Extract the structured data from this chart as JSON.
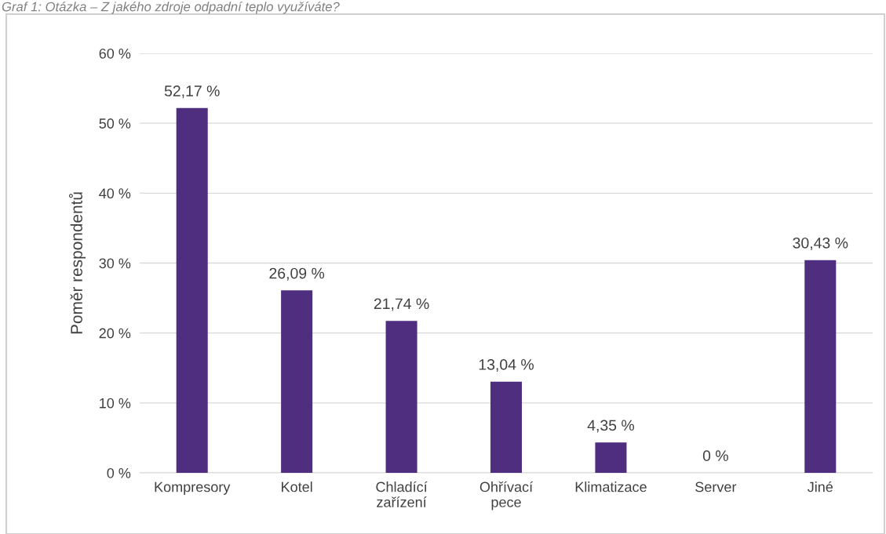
{
  "chart_data": {
    "type": "bar",
    "title": "Graf 1: Otázka – Z jakého zdroje odpadní teplo využíváte?",
    "ylabel": "Poměr respondentů",
    "categories": [
      "Kompresory",
      "Kotel",
      "Chladící\nzařízení",
      "Ohřívací\npece",
      "Klimatizace",
      "Server",
      "Jiné"
    ],
    "values": [
      52.17,
      26.09,
      21.74,
      13.04,
      4.35,
      0,
      30.43
    ],
    "value_labels": [
      "52,17 %",
      "26,09 %",
      "21,74 %",
      "13,04 %",
      "4,35 %",
      "0 %",
      "30,43 %"
    ],
    "color": "#4f2d7f",
    "ylim": [
      0,
      60
    ],
    "yticks": [
      {
        "value": 0,
        "label": "0 %"
      },
      {
        "value": 10,
        "label": "10 %"
      },
      {
        "value": 20,
        "label": "20 %"
      },
      {
        "value": 30,
        "label": "30 %"
      },
      {
        "value": 40,
        "label": "40 %"
      },
      {
        "value": 50,
        "label": "50 %"
      },
      {
        "value": 60,
        "label": "60 %"
      }
    ],
    "grid": "y",
    "legend": false
  }
}
